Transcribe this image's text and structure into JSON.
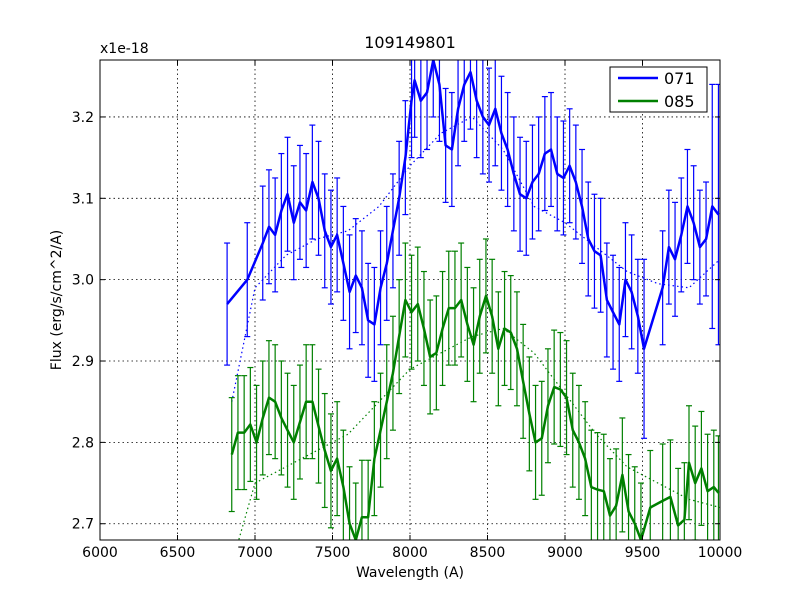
{
  "chart_data": {
    "type": "line",
    "title": "109149801",
    "xlabel": "Wavelength (A)",
    "ylabel": "Flux (erg/s/cm^2/A)",
    "y_multiplier": "x1e-18",
    "xlim": [
      6000,
      10000
    ],
    "ylim": [
      2.68,
      3.27
    ],
    "x_ticks": [
      6000,
      6500,
      7000,
      7500,
      8000,
      8500,
      9000,
      9500,
      10000
    ],
    "x_tick_labels": [
      "6000",
      "6500",
      "7000",
      "7500",
      "8000",
      "8500",
      "9000",
      "9500",
      "10000"
    ],
    "y_ticks": [
      2.7,
      2.8,
      2.9,
      3.0,
      3.1,
      3.2
    ],
    "y_tick_labels": [
      "2.7",
      "2.8",
      "2.9",
      "3.0",
      "3.1",
      "3.2"
    ],
    "grid": true,
    "legend_position": "top-right",
    "series": [
      {
        "name": "071",
        "color": "#0000ff",
        "x": [
          6820,
          6950,
          7050,
          7090,
          7130,
          7170,
          7210,
          7250,
          7290,
          7330,
          7370,
          7410,
          7450,
          7490,
          7530,
          7570,
          7610,
          7650,
          7690,
          7730,
          7770,
          7810,
          7850,
          7890,
          7930,
          7970,
          8010,
          8030,
          8070,
          8110,
          8150,
          8190,
          8230,
          8270,
          8310,
          8350,
          8390,
          8430,
          8470,
          8510,
          8550,
          8590,
          8630,
          8670,
          8710,
          8750,
          8790,
          8830,
          8870,
          8910,
          8950,
          8990,
          9030,
          9070,
          9110,
          9150,
          9190,
          9230,
          9270,
          9310,
          9350,
          9390,
          9430,
          9470,
          9510,
          9630,
          9670,
          9710,
          9750,
          9790,
          9830,
          9870,
          9910,
          9950,
          9990
        ],
        "y": [
          2.97,
          3.0,
          3.045,
          3.065,
          3.055,
          3.085,
          3.105,
          3.07,
          3.095,
          3.085,
          3.12,
          3.1,
          3.06,
          3.04,
          3.055,
          3.02,
          2.985,
          3.005,
          2.99,
          2.95,
          2.945,
          2.99,
          3.02,
          3.06,
          3.1,
          3.15,
          3.22,
          3.245,
          3.22,
          3.23,
          3.27,
          3.24,
          3.165,
          3.16,
          3.21,
          3.24,
          3.255,
          3.22,
          3.2,
          3.19,
          3.21,
          3.18,
          3.16,
          3.13,
          3.105,
          3.1,
          3.12,
          3.13,
          3.155,
          3.16,
          3.13,
          3.125,
          3.14,
          3.12,
          3.09,
          3.05,
          3.035,
          3.03,
          2.975,
          2.96,
          2.945,
          3.0,
          2.985,
          2.955,
          2.915,
          2.99,
          3.04,
          3.025,
          3.055,
          3.09,
          3.07,
          3.04,
          3.05,
          3.09,
          3.08
        ],
        "err": [
          0.075,
          0.07,
          0.07,
          0.07,
          0.07,
          0.07,
          0.07,
          0.07,
          0.07,
          0.07,
          0.07,
          0.07,
          0.07,
          0.07,
          0.07,
          0.07,
          0.07,
          0.07,
          0.07,
          0.07,
          0.07,
          0.07,
          0.07,
          0.07,
          0.07,
          0.07,
          0.07,
          0.07,
          0.07,
          0.07,
          0.07,
          0.07,
          0.07,
          0.07,
          0.07,
          0.07,
          0.07,
          0.07,
          0.07,
          0.07,
          0.07,
          0.07,
          0.07,
          0.07,
          0.07,
          0.07,
          0.07,
          0.07,
          0.07,
          0.07,
          0.07,
          0.07,
          0.07,
          0.07,
          0.07,
          0.07,
          0.07,
          0.07,
          0.07,
          0.07,
          0.07,
          0.07,
          0.07,
          0.07,
          0.11,
          0.07,
          0.07,
          0.07,
          0.07,
          0.07,
          0.07,
          0.07,
          0.07,
          0.15,
          0.16
        ]
      },
      {
        "name": "085",
        "color": "#008000",
        "x": [
          6850,
          6890,
          6930,
          6970,
          7010,
          7050,
          7090,
          7130,
          7170,
          7210,
          7250,
          7290,
          7330,
          7370,
          7410,
          7450,
          7490,
          7530,
          7570,
          7610,
          7650,
          7690,
          7730,
          7770,
          7810,
          7850,
          7890,
          7930,
          7970,
          8010,
          8050,
          8090,
          8130,
          8170,
          8210,
          8250,
          8290,
          8330,
          8370,
          8410,
          8450,
          8490,
          8530,
          8570,
          8610,
          8650,
          8690,
          8730,
          8770,
          8810,
          8850,
          8890,
          8930,
          8970,
          9010,
          9050,
          9090,
          9130,
          9170,
          9210,
          9250,
          9290,
          9330,
          9370,
          9410,
          9450,
          9490,
          9550,
          9630,
          9680,
          9730,
          9770,
          9800,
          9840,
          9880,
          9920,
          9960,
          9990
        ],
        "y": [
          2.785,
          2.812,
          2.812,
          2.822,
          2.8,
          2.83,
          2.855,
          2.85,
          2.83,
          2.815,
          2.8,
          2.825,
          2.85,
          2.85,
          2.82,
          2.79,
          2.765,
          2.78,
          2.745,
          2.7,
          2.68,
          2.708,
          2.708,
          2.78,
          2.815,
          2.85,
          2.885,
          2.93,
          2.975,
          2.96,
          2.97,
          2.94,
          2.905,
          2.91,
          2.94,
          2.965,
          2.965,
          2.975,
          2.945,
          2.92,
          2.955,
          2.98,
          2.955,
          2.915,
          2.94,
          2.935,
          2.915,
          2.875,
          2.835,
          2.8,
          2.805,
          2.845,
          2.868,
          2.865,
          2.855,
          2.815,
          2.8,
          2.78,
          2.745,
          2.742,
          2.74,
          2.71,
          2.722,
          2.76,
          2.715,
          2.7,
          2.68,
          2.72,
          2.728,
          2.733,
          2.698,
          2.705,
          2.775,
          2.75,
          2.768,
          2.74,
          2.745,
          2.738
        ],
        "err": [
          0.07,
          0.07,
          0.07,
          0.07,
          0.07,
          0.07,
          0.07,
          0.07,
          0.07,
          0.07,
          0.07,
          0.07,
          0.07,
          0.07,
          0.07,
          0.07,
          0.07,
          0.07,
          0.07,
          0.07,
          0.07,
          0.07,
          0.07,
          0.07,
          0.07,
          0.07,
          0.07,
          0.07,
          0.07,
          0.07,
          0.07,
          0.07,
          0.07,
          0.07,
          0.07,
          0.07,
          0.07,
          0.07,
          0.07,
          0.07,
          0.07,
          0.07,
          0.07,
          0.07,
          0.07,
          0.07,
          0.07,
          0.07,
          0.07,
          0.07,
          0.07,
          0.07,
          0.07,
          0.07,
          0.07,
          0.07,
          0.07,
          0.07,
          0.07,
          0.07,
          0.07,
          0.07,
          0.07,
          0.07,
          0.07,
          0.07,
          0.07,
          0.07,
          0.07,
          0.07,
          0.07,
          0.07,
          0.07,
          0.07,
          0.07,
          0.07,
          0.07,
          0.07
        ]
      }
    ],
    "model_lines": [
      {
        "name": "071 model",
        "color": "#0000ff",
        "style": "dotted",
        "x": [
          6850,
          7000,
          7200,
          7400,
          7600,
          7800,
          8000,
          8200,
          8400,
          8600,
          8800,
          9000,
          9200,
          9400,
          9600,
          9800,
          10000
        ],
        "y": [
          2.85,
          2.99,
          3.03,
          3.05,
          3.06,
          3.09,
          3.14,
          3.18,
          3.2,
          3.16,
          3.09,
          3.07,
          3.04,
          3.01,
          2.995,
          2.99,
          3.025
        ]
      },
      {
        "name": "085 model",
        "color": "#008000",
        "style": "dotted",
        "x": [
          6880,
          7000,
          7200,
          7400,
          7600,
          7800,
          8000,
          8200,
          8400,
          8600,
          8800,
          9000,
          9200,
          9400,
          9600,
          9800,
          10000
        ],
        "y": [
          2.67,
          2.75,
          2.77,
          2.79,
          2.81,
          2.85,
          2.89,
          2.91,
          2.93,
          2.94,
          2.91,
          2.86,
          2.81,
          2.77,
          2.75,
          2.73,
          2.72
        ]
      }
    ]
  }
}
